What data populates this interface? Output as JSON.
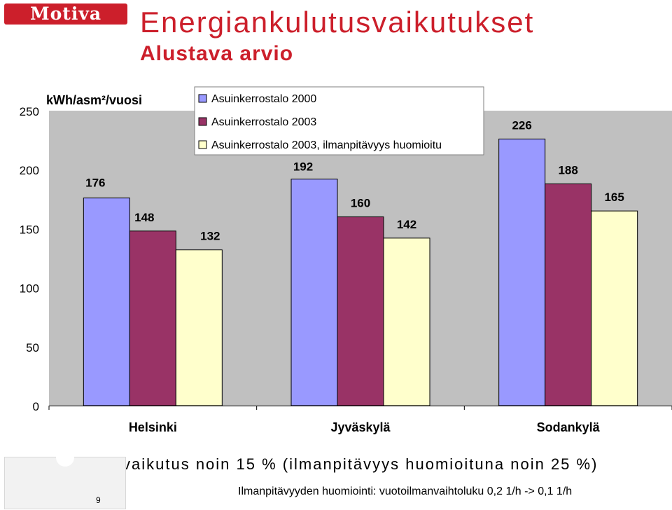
{
  "logo": {
    "text": "Motiva"
  },
  "header": {
    "title": "Energiankulutusvaikutukset",
    "subtitle": "Alustava arvio"
  },
  "chart_data": {
    "type": "bar",
    "ylabel": "kWh/asm²/vuosi",
    "ylim": [
      0,
      250
    ],
    "yticks": [
      0,
      50,
      100,
      150,
      200,
      250
    ],
    "categories": [
      "Helsinki",
      "Jyväskylä",
      "Sodankylä"
    ],
    "series": [
      {
        "name": "Asuinkerrostalo 2000",
        "color": "#9999ff",
        "values": [
          176,
          192,
          226
        ]
      },
      {
        "name": "Asuinkerrostalo 2003",
        "color": "#993366",
        "values": [
          148,
          160,
          188
        ]
      },
      {
        "name": "Asuinkerrostalo 2003, ilmanpitävyys huomioitu",
        "color": "#ffffcc",
        "values": [
          132,
          142,
          165
        ]
      }
    ],
    "plot_background": "#c0c0c0",
    "grid": false,
    "legend": "top"
  },
  "notes": {
    "bullet": "vaikutus noin 15 % (ilmanpitävyys huomioituna noin 25 %)",
    "footnote": "Ilmanpitävyyden huomiointi: vuotoilmanvaihtoluku 0,2 1/h -> 0,1 1/h"
  },
  "page": {
    "number": "9"
  }
}
